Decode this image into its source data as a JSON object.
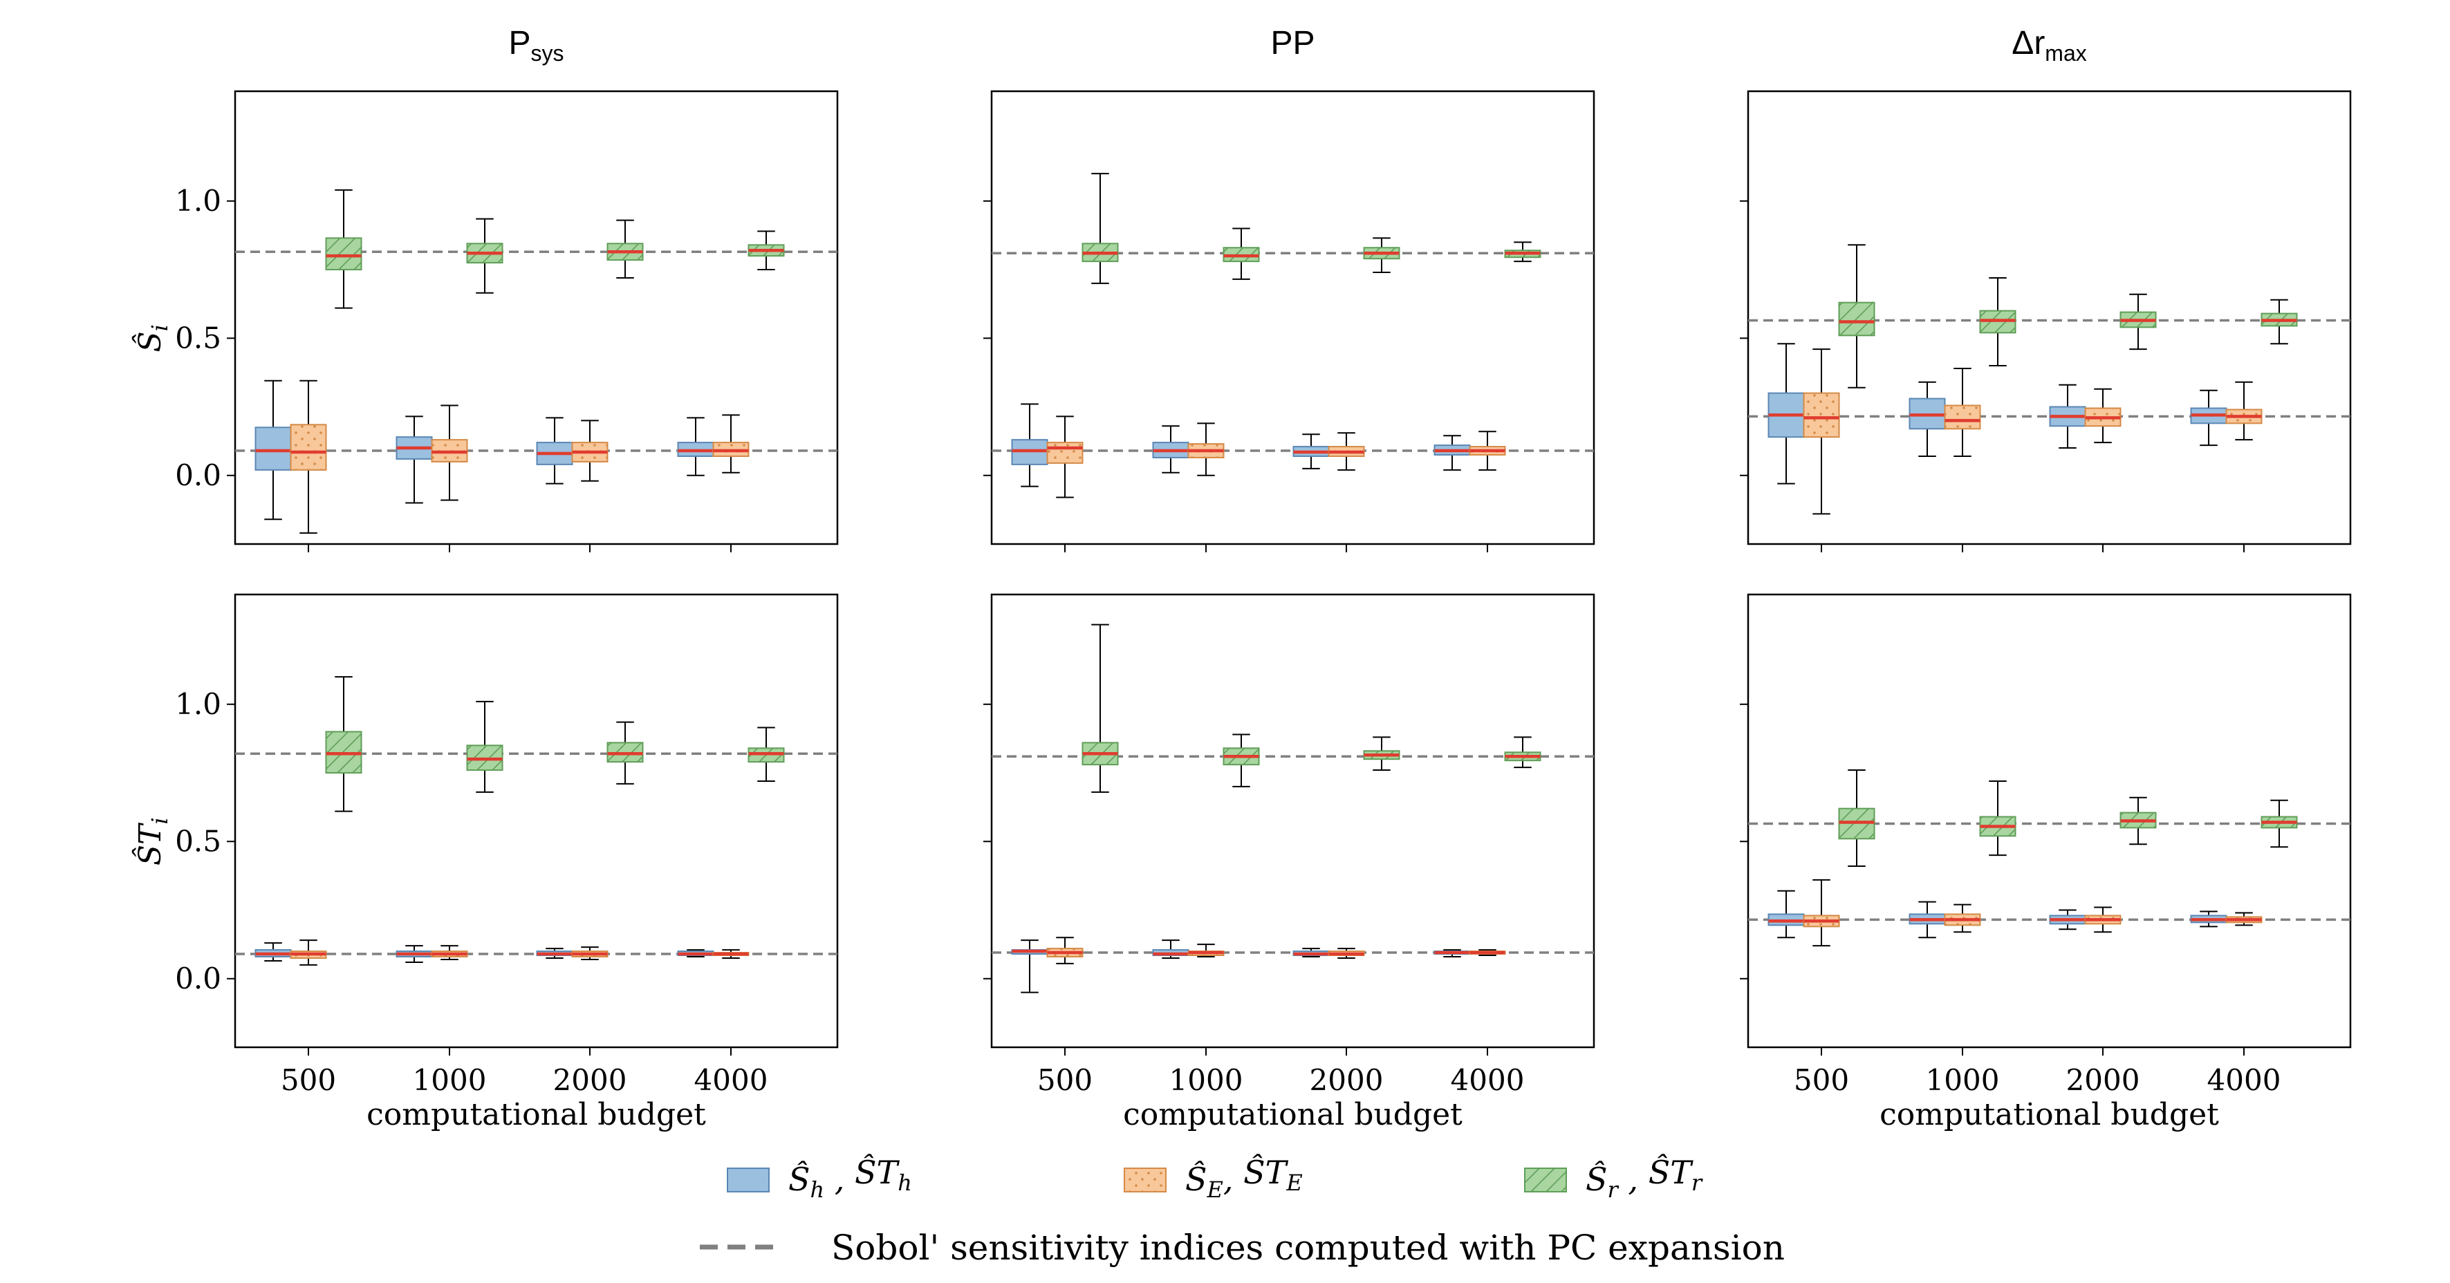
{
  "chart_data": {
    "type": "box",
    "categories": [
      "500",
      "1000",
      "2000",
      "4000"
    ],
    "xlabel": "computational budget",
    "ylim": [
      -0.25,
      1.4
    ],
    "yticks": [
      "0.0",
      "0.5",
      "1.0"
    ],
    "colors": {
      "h": "#9bbfdf",
      "h_edge": "#5a87b3",
      "E": "#f8c79a",
      "E_edge": "#d48a46",
      "r": "#a8d5a0",
      "r_edge": "#5f9e57",
      "median": "#e03c2f",
      "ref": "#808080"
    },
    "columns": [
      {
        "title": "P",
        "title_sub": "sys"
      },
      {
        "title": "PP",
        "title_sub": ""
      },
      {
        "title": "Δr",
        "title_sub": "max"
      }
    ],
    "rows": [
      {
        "ylabel": "Ŝ",
        "ylabel_sub": "i"
      },
      {
        "ylabel": "ŜT",
        "ylabel_sub": "i"
      }
    ],
    "panels": [
      {
        "row": 0,
        "col": 0,
        "ref_lines": [
          0.815,
          0.09
        ],
        "boxes": {
          "h": [
            [
              -0.16,
              0.02,
              0.09,
              0.175,
              0.345
            ],
            [
              -0.1,
              0.06,
              0.1,
              0.14,
              0.215
            ],
            [
              -0.03,
              0.04,
              0.08,
              0.12,
              0.21
            ],
            [
              0.0,
              0.07,
              0.09,
              0.12,
              0.21
            ]
          ],
          "E": [
            [
              -0.21,
              0.02,
              0.085,
              0.185,
              0.345
            ],
            [
              -0.09,
              0.05,
              0.085,
              0.13,
              0.255
            ],
            [
              -0.02,
              0.05,
              0.085,
              0.12,
              0.2
            ],
            [
              0.01,
              0.07,
              0.09,
              0.12,
              0.22
            ]
          ],
          "r": [
            [
              0.61,
              0.75,
              0.8,
              0.865,
              1.04
            ],
            [
              0.665,
              0.775,
              0.81,
              0.845,
              0.935
            ],
            [
              0.72,
              0.785,
              0.815,
              0.845,
              0.93
            ],
            [
              0.75,
              0.8,
              0.82,
              0.84,
              0.89
            ]
          ]
        }
      },
      {
        "row": 0,
        "col": 1,
        "ref_lines": [
          0.81,
          0.09
        ],
        "boxes": {
          "h": [
            [
              -0.04,
              0.04,
              0.09,
              0.13,
              0.26
            ],
            [
              0.01,
              0.065,
              0.09,
              0.12,
              0.18
            ],
            [
              0.025,
              0.07,
              0.085,
              0.105,
              0.15
            ],
            [
              0.02,
              0.075,
              0.09,
              0.11,
              0.145
            ]
          ],
          "E": [
            [
              -0.08,
              0.045,
              0.1,
              0.12,
              0.215
            ],
            [
              0.0,
              0.065,
              0.09,
              0.115,
              0.19
            ],
            [
              0.02,
              0.07,
              0.085,
              0.105,
              0.155
            ],
            [
              0.02,
              0.075,
              0.09,
              0.105,
              0.16
            ]
          ],
          "r": [
            [
              0.7,
              0.78,
              0.81,
              0.845,
              1.1
            ],
            [
              0.715,
              0.78,
              0.8,
              0.83,
              0.9
            ],
            [
              0.74,
              0.79,
              0.81,
              0.83,
              0.865
            ],
            [
              0.78,
              0.795,
              0.81,
              0.82,
              0.85
            ]
          ]
        }
      },
      {
        "row": 0,
        "col": 2,
        "ref_lines": [
          0.565,
          0.215
        ],
        "boxes": {
          "h": [
            [
              -0.03,
              0.14,
              0.22,
              0.3,
              0.48
            ],
            [
              0.07,
              0.17,
              0.22,
              0.28,
              0.34
            ],
            [
              0.1,
              0.18,
              0.215,
              0.25,
              0.33
            ],
            [
              0.11,
              0.19,
              0.22,
              0.245,
              0.31
            ]
          ],
          "E": [
            [
              -0.14,
              0.14,
              0.21,
              0.3,
              0.46
            ],
            [
              0.07,
              0.17,
              0.2,
              0.255,
              0.39
            ],
            [
              0.12,
              0.18,
              0.21,
              0.245,
              0.315
            ],
            [
              0.13,
              0.19,
              0.215,
              0.24,
              0.34
            ]
          ],
          "r": [
            [
              0.32,
              0.51,
              0.56,
              0.63,
              0.84
            ],
            [
              0.4,
              0.52,
              0.565,
              0.6,
              0.72
            ],
            [
              0.46,
              0.54,
              0.565,
              0.595,
              0.66
            ],
            [
              0.48,
              0.545,
              0.565,
              0.59,
              0.64
            ]
          ]
        }
      },
      {
        "row": 1,
        "col": 0,
        "ref_lines": [
          0.82,
          0.09
        ],
        "boxes": {
          "h": [
            [
              0.065,
              0.08,
              0.09,
              0.105,
              0.13
            ],
            [
              0.06,
              0.08,
              0.09,
              0.1,
              0.12
            ],
            [
              0.075,
              0.085,
              0.09,
              0.1,
              0.11
            ],
            [
              0.08,
              0.085,
              0.09,
              0.1,
              0.105
            ]
          ],
          "E": [
            [
              0.05,
              0.075,
              0.09,
              0.1,
              0.14
            ],
            [
              0.07,
              0.08,
              0.09,
              0.1,
              0.12
            ],
            [
              0.07,
              0.08,
              0.09,
              0.1,
              0.115
            ],
            [
              0.075,
              0.085,
              0.09,
              0.095,
              0.105
            ]
          ],
          "r": [
            [
              0.61,
              0.75,
              0.82,
              0.9,
              1.1
            ],
            [
              0.68,
              0.76,
              0.8,
              0.85,
              1.01
            ],
            [
              0.71,
              0.79,
              0.82,
              0.86,
              0.935
            ],
            [
              0.72,
              0.79,
              0.82,
              0.84,
              0.915
            ]
          ]
        }
      },
      {
        "row": 1,
        "col": 1,
        "ref_lines": [
          0.81,
          0.095
        ],
        "boxes": {
          "h": [
            [
              -0.05,
              0.09,
              0.1,
              0.105,
              0.14
            ],
            [
              0.075,
              0.085,
              0.09,
              0.105,
              0.14
            ],
            [
              0.08,
              0.085,
              0.09,
              0.1,
              0.11
            ],
            [
              0.08,
              0.09,
              0.095,
              0.1,
              0.105
            ]
          ],
          "E": [
            [
              0.055,
              0.08,
              0.095,
              0.11,
              0.15
            ],
            [
              0.08,
              0.085,
              0.095,
              0.1,
              0.125
            ],
            [
              0.075,
              0.085,
              0.09,
              0.1,
              0.11
            ],
            [
              0.085,
              0.09,
              0.095,
              0.1,
              0.105
            ]
          ],
          "r": [
            [
              0.68,
              0.78,
              0.82,
              0.86,
              1.29
            ],
            [
              0.7,
              0.78,
              0.81,
              0.84,
              0.89
            ],
            [
              0.76,
              0.8,
              0.815,
              0.83,
              0.88
            ],
            [
              0.77,
              0.795,
              0.81,
              0.825,
              0.88
            ]
          ]
        }
      },
      {
        "row": 1,
        "col": 2,
        "ref_lines": [
          0.565,
          0.215
        ],
        "boxes": {
          "h": [
            [
              0.15,
              0.195,
              0.21,
              0.235,
              0.32
            ],
            [
              0.15,
              0.2,
              0.215,
              0.235,
              0.28
            ],
            [
              0.18,
              0.2,
              0.215,
              0.23,
              0.25
            ],
            [
              0.19,
              0.205,
              0.215,
              0.23,
              0.245
            ]
          ],
          "E": [
            [
              0.12,
              0.19,
              0.21,
              0.23,
              0.36
            ],
            [
              0.17,
              0.195,
              0.215,
              0.235,
              0.27
            ],
            [
              0.17,
              0.2,
              0.215,
              0.23,
              0.26
            ],
            [
              0.195,
              0.205,
              0.215,
              0.225,
              0.24
            ]
          ],
          "r": [
            [
              0.41,
              0.51,
              0.57,
              0.62,
              0.76
            ],
            [
              0.45,
              0.52,
              0.555,
              0.59,
              0.72
            ],
            [
              0.49,
              0.55,
              0.575,
              0.605,
              0.66
            ],
            [
              0.48,
              0.55,
              0.57,
              0.59,
              0.65
            ]
          ]
        }
      }
    ],
    "legend": {
      "entries": [
        {
          "key": "h",
          "parts": [
            "Ŝ",
            "h",
            " , ",
            "ŜT",
            "h"
          ]
        },
        {
          "key": "E",
          "parts": [
            "Ŝ",
            "E",
            ", ",
            "ŜT",
            "E"
          ]
        },
        {
          "key": "r",
          "parts": [
            "Ŝ",
            "r",
            " , ",
            "ŜT",
            "r"
          ]
        }
      ],
      "ref_label": "Sobol' sensitivity indices computed with PC expansion"
    }
  }
}
